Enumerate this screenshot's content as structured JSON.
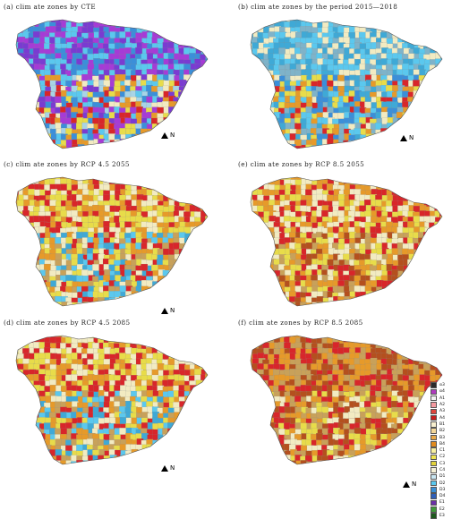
{
  "panels": [
    {
      "id": "a",
      "title": "(a) clim ate zones by CTE",
      "north": "N",
      "palette": [
        "#3b8fd9",
        "#5bc8ee",
        "#7a3bd1",
        "#a63bd6",
        "#f2ebc2",
        "#e8dc4a",
        "#e69a2a",
        "#d8262a",
        "#a8d4e6"
      ]
    },
    {
      "id": "b",
      "title": "(b) clim ate zones by the period 2015—2018",
      "north": "N",
      "palette": [
        "#3fa9d6",
        "#5bc8ee",
        "#7fb3c9",
        "#f2ebc2",
        "#e8dc4a",
        "#e69a2a",
        "#d8262a",
        "#3b8fd9"
      ]
    },
    {
      "id": "c",
      "title": "(c) clim ate zones by RCP 4.5 2055",
      "north": "N",
      "palette": [
        "#e69a2a",
        "#f2ebc2",
        "#e8dc4a",
        "#d8262a",
        "#3fa9d6",
        "#5bc8ee",
        "#c8a15a"
      ]
    },
    {
      "id": "e",
      "title": "(e) clim ate zones by RCP 8.5 2055",
      "north": "N",
      "palette": [
        "#e69a2a",
        "#d8262a",
        "#f2ebc2",
        "#e8dc4a",
        "#c8a15a",
        "#b4501e"
      ]
    },
    {
      "id": "d",
      "title": "(d) clim ate zones by RCP 4.5 2085",
      "north": "N",
      "palette": [
        "#e69a2a",
        "#f2ebc2",
        "#e8dc4a",
        "#d8262a",
        "#3fa9d6",
        "#5bc8ee",
        "#c8a15a"
      ]
    },
    {
      "id": "f",
      "title": "(f) clim ate zones by RCP 8.5 2085",
      "north": "N",
      "palette": [
        "#d8262a",
        "#e69a2a",
        "#c8a15a",
        "#b4501e",
        "#f2ebc2",
        "#e8dc4a"
      ]
    }
  ],
  "legend": [
    {
      "label": "α3",
      "color": "#2b2b2b"
    },
    {
      "label": "α4",
      "color": "#b03bbf"
    },
    {
      "label": "A1",
      "color": "#f2f2f2"
    },
    {
      "label": "A2",
      "color": "#f49aa0"
    },
    {
      "label": "A3",
      "color": "#e0453c"
    },
    {
      "label": "A4",
      "color": "#c81d1d"
    },
    {
      "label": "B1",
      "color": "#f7efcf"
    },
    {
      "label": "B2",
      "color": "#f3d79a"
    },
    {
      "label": "B3",
      "color": "#eaaa4a"
    },
    {
      "label": "B4",
      "color": "#e08a1e"
    },
    {
      "label": "C1",
      "color": "#f7f0a0"
    },
    {
      "label": "C2",
      "color": "#f0e450"
    },
    {
      "label": "C3",
      "color": "#e2d23a"
    },
    {
      "label": "C4",
      "color": "#f5f0d6"
    },
    {
      "label": "D1",
      "color": "#c9e6f2"
    },
    {
      "label": "D2",
      "color": "#5bc8ee"
    },
    {
      "label": "D3",
      "color": "#3a8fd6"
    },
    {
      "label": "D4",
      "color": "#2f5fb8"
    },
    {
      "label": "E1",
      "color": "#6b2fa8"
    },
    {
      "label": "E2",
      "color": "#3f9a3a"
    },
    {
      "label": "E3",
      "color": "#1e5a1e"
    }
  ]
}
